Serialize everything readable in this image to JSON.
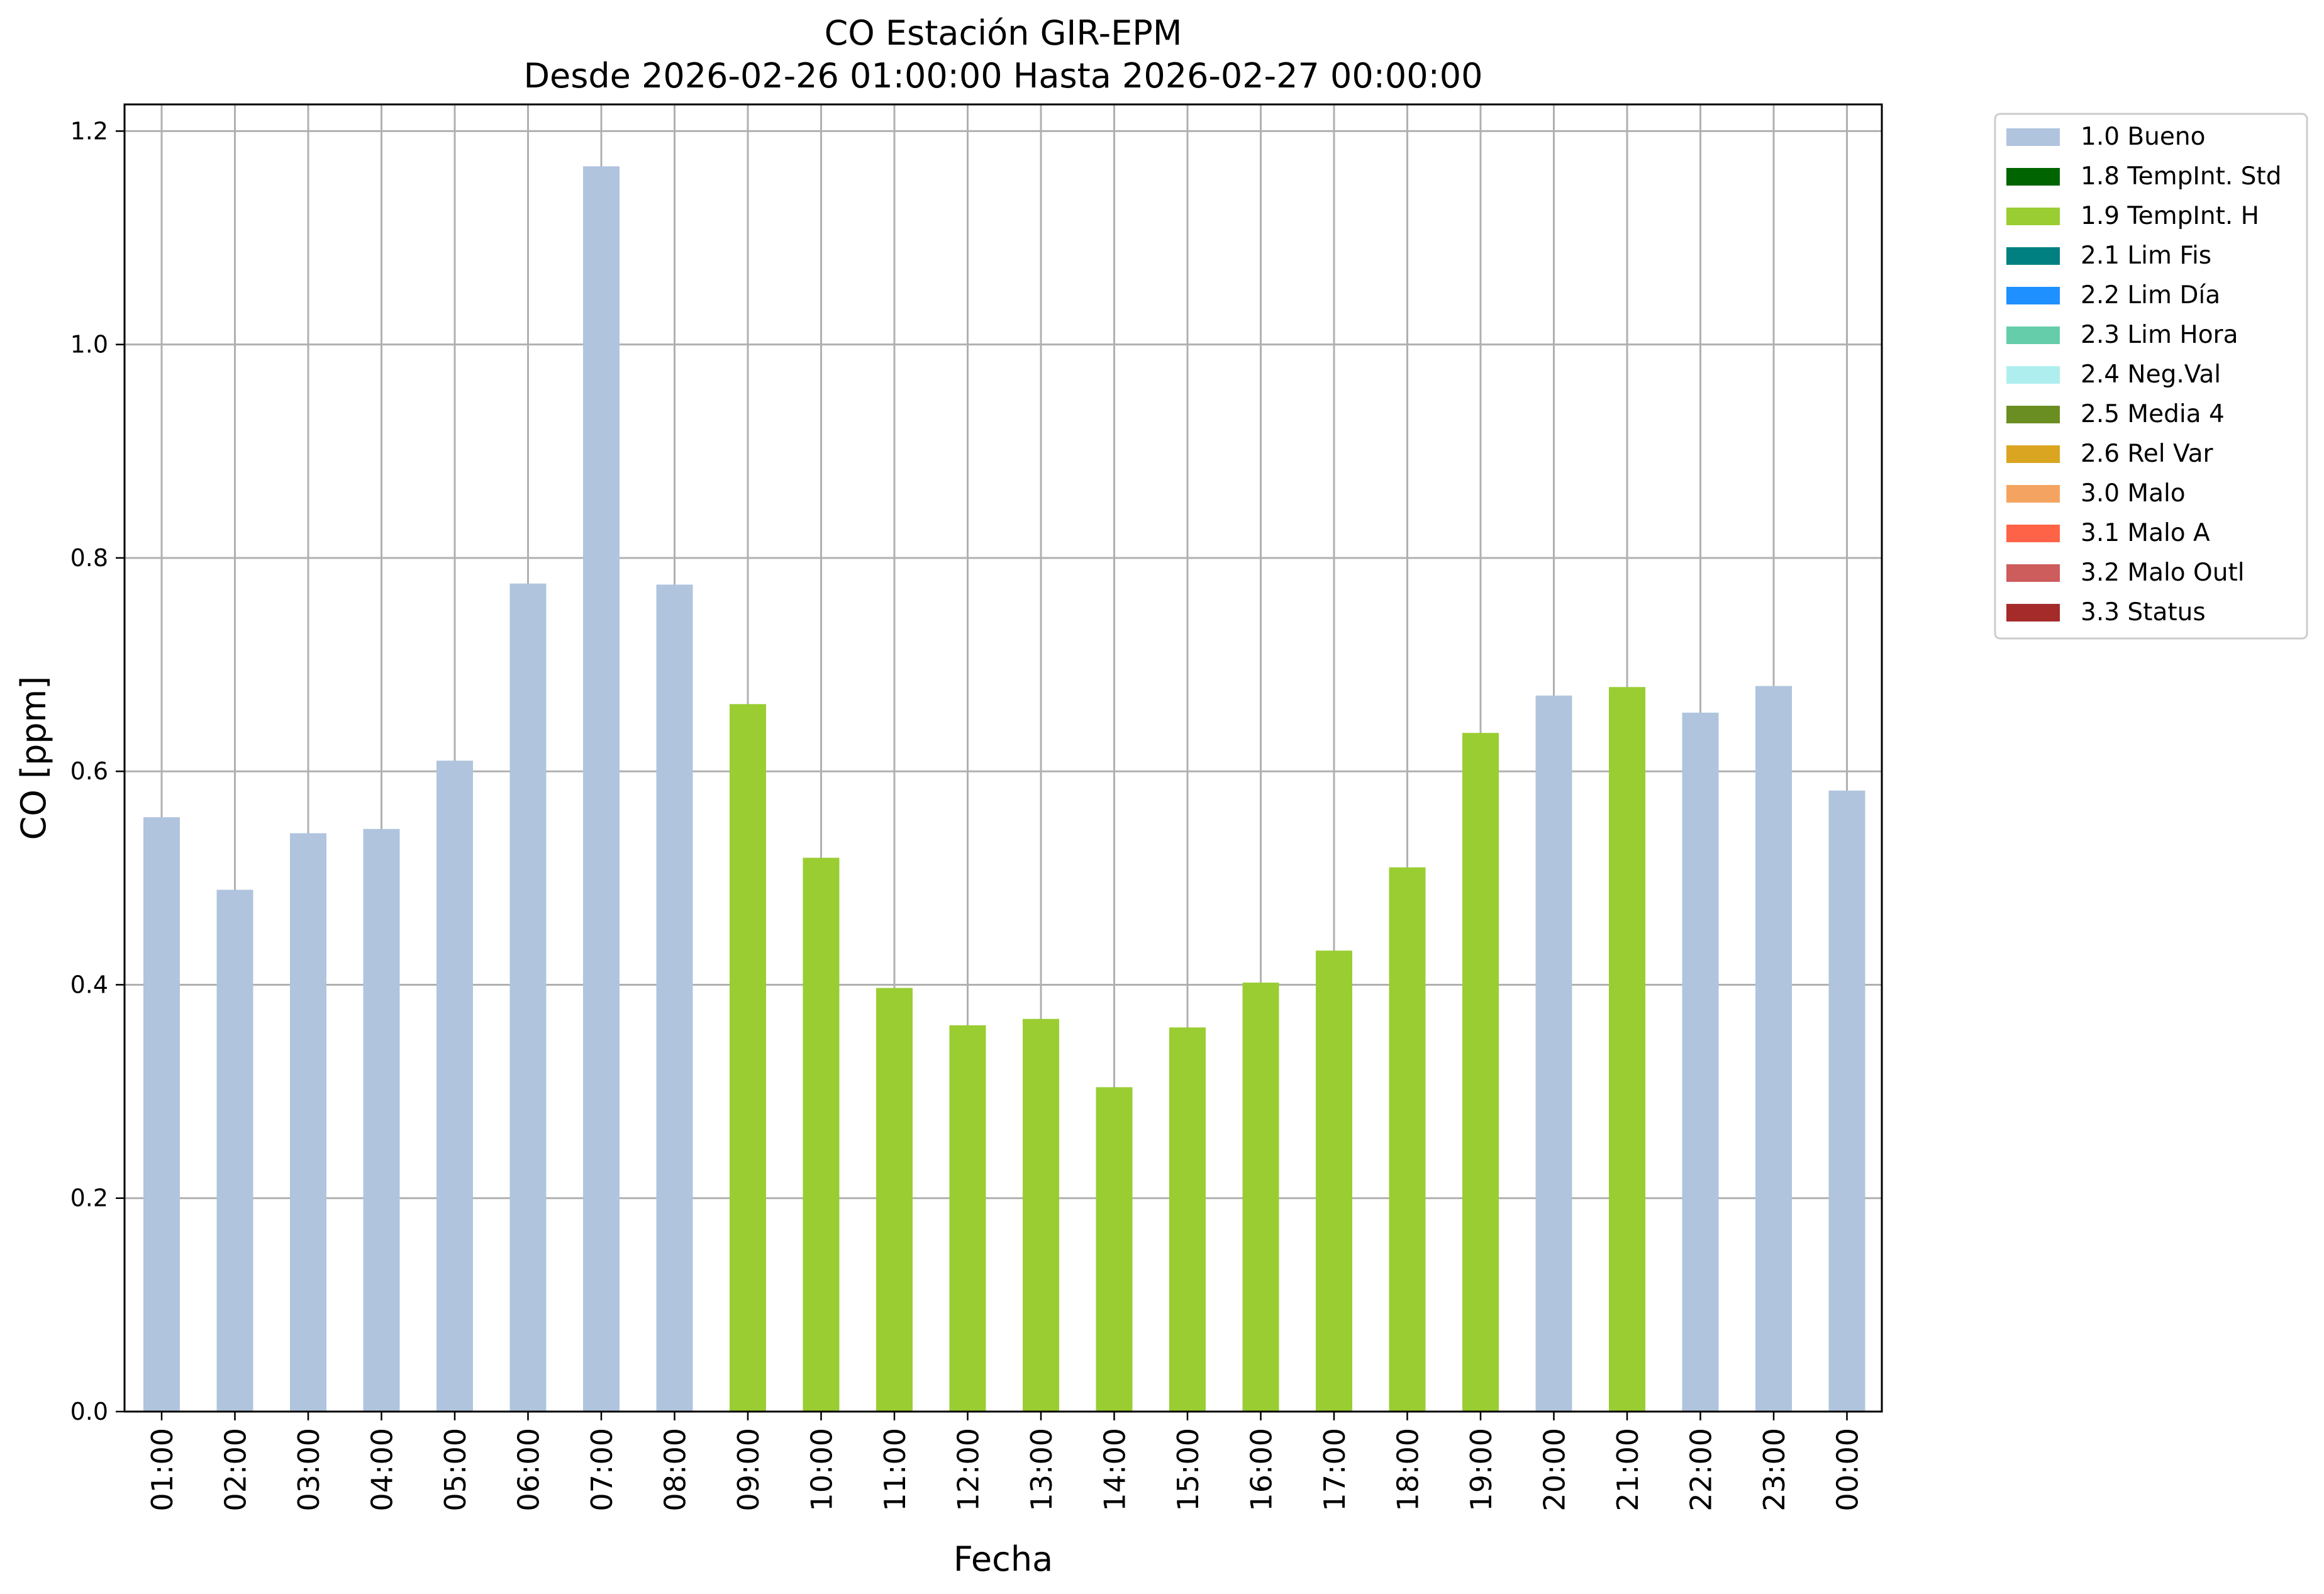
{
  "chart_data": {
    "type": "bar",
    "title_line1": "CO Estación GIR-EPM",
    "title_line2": "Desde 2026-02-26 01:00:00 Hasta 2026-02-27 00:00:00",
    "xlabel": "Fecha",
    "ylabel": "CO [ppm]",
    "ylim": [
      0,
      1.225
    ],
    "yticks": [
      "0.0",
      "0.2",
      "0.4",
      "0.6",
      "0.8",
      "1.0",
      "1.2"
    ],
    "grid": true,
    "legend_position": "outside top-right",
    "categories": [
      "01:00",
      "02:00",
      "03:00",
      "04:00",
      "05:00",
      "06:00",
      "07:00",
      "08:00",
      "09:00",
      "10:00",
      "11:00",
      "12:00",
      "13:00",
      "14:00",
      "15:00",
      "16:00",
      "17:00",
      "18:00",
      "19:00",
      "20:00",
      "21:00",
      "22:00",
      "23:00",
      "00:00"
    ],
    "values": [
      0.557,
      0.489,
      0.542,
      0.546,
      0.61,
      0.776,
      1.167,
      0.775,
      0.663,
      0.519,
      0.397,
      0.362,
      0.368,
      0.304,
      0.36,
      0.402,
      0.432,
      0.51,
      0.636,
      0.671,
      0.679,
      0.655,
      0.68,
      0.582
    ],
    "bar_flags": [
      "1.0 Bueno",
      "1.0 Bueno",
      "1.0 Bueno",
      "1.0 Bueno",
      "1.0 Bueno",
      "1.0 Bueno",
      "1.0 Bueno",
      "1.0 Bueno",
      "1.9 TempInt. H",
      "1.9 TempInt. H",
      "1.9 TempInt. H",
      "1.9 TempInt. H",
      "1.9 TempInt. H",
      "1.9 TempInt. H",
      "1.9 TempInt. H",
      "1.9 TempInt. H",
      "1.9 TempInt. H",
      "1.9 TempInt. H",
      "1.9 TempInt. H",
      "1.0 Bueno",
      "1.9 TempInt. H",
      "1.0 Bueno",
      "1.0 Bueno",
      "1.0 Bueno"
    ],
    "legend": [
      {
        "label": "1.0 Bueno",
        "color": "#b0c4de"
      },
      {
        "label": "1.8 TempInt. Std",
        "color": "#006400"
      },
      {
        "label": "1.9 TempInt. H",
        "color": "#9acd32"
      },
      {
        "label": "2.1 Lim Fis",
        "color": "#008080"
      },
      {
        "label": "2.2 Lim Día",
        "color": "#1e90ff"
      },
      {
        "label": "2.3 Lim Hora",
        "color": "#66cdaa"
      },
      {
        "label": "2.4 Neg.Val",
        "color": "#afeeee"
      },
      {
        "label": "2.5 Media 4",
        "color": "#6b8e23"
      },
      {
        "label": "2.6 Rel Var",
        "color": "#daa520"
      },
      {
        "label": "3.0 Malo",
        "color": "#f4a460"
      },
      {
        "label": "3.1 Malo A",
        "color": "#ff6347"
      },
      {
        "label": "3.2 Malo Outl",
        "color": "#cd5c5c"
      },
      {
        "label": "3.3 Status",
        "color": "#a52a2a"
      }
    ]
  }
}
